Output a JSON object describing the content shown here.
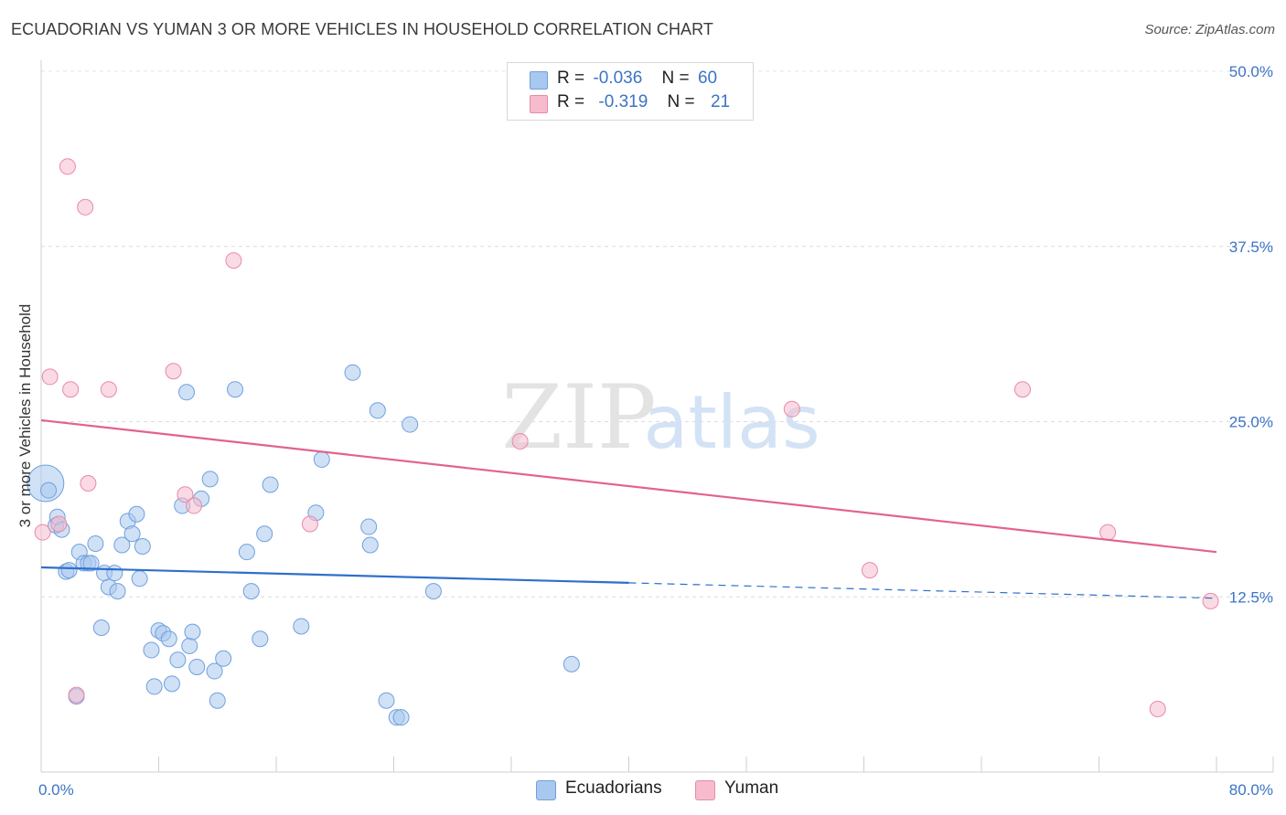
{
  "header": {
    "title": "ECUADORIAN VS YUMAN 3 OR MORE VEHICLES IN HOUSEHOLD CORRELATION CHART",
    "source": "Source: ZipAtlas.com"
  },
  "watermark": {
    "zip": "ZIP",
    "atlas": "atlas"
  },
  "stats": [
    {
      "r_label": "R =",
      "r_value": "-0.036",
      "n_label": "N =",
      "n_value": "60",
      "color": "#a9c8ef",
      "border": "#6fa0dd"
    },
    {
      "r_label": "R =",
      "r_value": "-0.319",
      "n_label": "N =",
      "n_value": "21",
      "color": "#f6bccd",
      "border": "#e98aa6"
    }
  ],
  "legend": [
    {
      "label": "Ecuadorians",
      "color": "#a9c8ef",
      "border": "#6fa0dd"
    },
    {
      "label": "Yuman",
      "color": "#f6bccd",
      "border": "#e98aa6"
    }
  ],
  "chart_data": {
    "type": "scatter",
    "title": "ECUADORIAN VS YUMAN 3 OR MORE VEHICLES IN HOUSEHOLD CORRELATION CHART",
    "xlabel": "",
    "ylabel": "3 or more Vehicles in Household",
    "xlim": [
      0,
      80
    ],
    "ylim": [
      0,
      50
    ],
    "x_tick_labels": [
      "0.0%",
      "80.0%"
    ],
    "y_tick_labels": [
      "12.5%",
      "25.0%",
      "37.5%",
      "50.0%"
    ],
    "y_ticks": [
      12.5,
      25,
      37.5,
      50
    ],
    "x_minor_ticks": [
      0,
      8,
      16,
      24,
      32,
      40,
      48,
      56,
      64,
      72,
      80
    ],
    "grid": true,
    "series": [
      {
        "name": "Ecuadorians",
        "color": "#a9c8ef",
        "edge": "#6fa0dd",
        "points": [
          [
            0.3,
            20.6
          ],
          [
            0.5,
            20.1
          ],
          [
            1.0,
            17.6
          ],
          [
            1.1,
            18.2
          ],
          [
            1.4,
            17.3
          ],
          [
            1.7,
            14.3
          ],
          [
            1.9,
            14.4
          ],
          [
            2.4,
            5.4
          ],
          [
            2.6,
            15.7
          ],
          [
            2.9,
            14.9
          ],
          [
            3.2,
            14.9
          ],
          [
            3.4,
            14.9
          ],
          [
            3.7,
            16.3
          ],
          [
            4.1,
            10.3
          ],
          [
            4.3,
            14.2
          ],
          [
            4.6,
            13.2
          ],
          [
            5.0,
            14.2
          ],
          [
            5.2,
            12.9
          ],
          [
            5.5,
            16.2
          ],
          [
            5.9,
            17.9
          ],
          [
            6.2,
            17.0
          ],
          [
            6.5,
            18.4
          ],
          [
            6.7,
            13.8
          ],
          [
            6.9,
            16.1
          ],
          [
            7.5,
            8.7
          ],
          [
            7.7,
            6.1
          ],
          [
            8.0,
            10.1
          ],
          [
            8.3,
            9.9
          ],
          [
            8.7,
            9.5
          ],
          [
            8.9,
            6.3
          ],
          [
            9.3,
            8.0
          ],
          [
            9.6,
            19.0
          ],
          [
            9.9,
            27.1
          ],
          [
            10.1,
            9.0
          ],
          [
            10.3,
            10.0
          ],
          [
            10.6,
            7.5
          ],
          [
            10.9,
            19.5
          ],
          [
            11.5,
            20.9
          ],
          [
            11.8,
            7.2
          ],
          [
            12.0,
            5.1
          ],
          [
            12.4,
            8.1
          ],
          [
            13.2,
            27.3
          ],
          [
            14.0,
            15.7
          ],
          [
            14.3,
            12.9
          ],
          [
            14.9,
            9.5
          ],
          [
            15.2,
            17.0
          ],
          [
            15.6,
            20.5
          ],
          [
            17.7,
            10.4
          ],
          [
            18.7,
            18.5
          ],
          [
            19.1,
            22.3
          ],
          [
            21.2,
            28.5
          ],
          [
            22.3,
            17.5
          ],
          [
            22.4,
            16.2
          ],
          [
            22.9,
            25.8
          ],
          [
            23.5,
            5.1
          ],
          [
            24.2,
            3.9
          ],
          [
            24.5,
            3.9
          ],
          [
            25.1,
            24.8
          ],
          [
            26.7,
            12.9
          ],
          [
            36.1,
            7.7
          ]
        ]
      },
      {
        "name": "Yuman",
        "color": "#f6bccd",
        "edge": "#e98aa6",
        "points": [
          [
            0.1,
            17.1
          ],
          [
            0.6,
            28.2
          ],
          [
            1.2,
            17.7
          ],
          [
            1.8,
            43.2
          ],
          [
            2.0,
            27.3
          ],
          [
            2.4,
            5.5
          ],
          [
            3.0,
            40.3
          ],
          [
            3.2,
            20.6
          ],
          [
            4.6,
            27.3
          ],
          [
            9.0,
            28.6
          ],
          [
            9.8,
            19.8
          ],
          [
            10.4,
            19.0
          ],
          [
            13.1,
            36.5
          ],
          [
            18.3,
            17.7
          ],
          [
            32.6,
            23.6
          ],
          [
            51.1,
            25.9
          ],
          [
            56.4,
            14.4
          ],
          [
            66.8,
            27.3
          ],
          [
            72.6,
            17.1
          ],
          [
            76.0,
            4.5
          ],
          [
            79.6,
            12.2
          ]
        ]
      }
    ],
    "trendlines": [
      {
        "series": "Ecuadorians",
        "color": "#2f6fcb",
        "solid_from": [
          0,
          14.6
        ],
        "solid_to": [
          40,
          13.5
        ],
        "dashed_to": [
          80,
          12.4
        ]
      },
      {
        "series": "Yuman",
        "color": "#e2628e",
        "solid_from": [
          0,
          25.1
        ],
        "solid_to": [
          80,
          15.7
        ]
      }
    ]
  }
}
